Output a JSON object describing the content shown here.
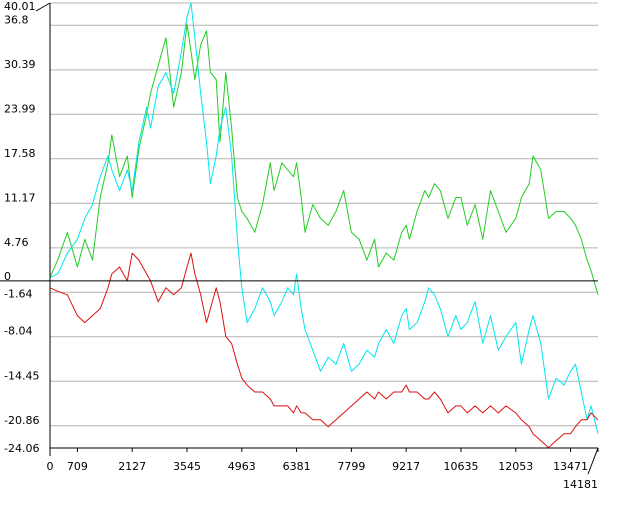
{
  "chart_data": {
    "type": "line",
    "title": "",
    "xlabel": "",
    "ylabel": "",
    "xlim": [
      0,
      14181
    ],
    "ylim": [
      -24.06,
      40.01
    ],
    "grid": true,
    "legend": "none",
    "y_ticks": [
      40.01,
      36.8,
      30.39,
      23.99,
      17.58,
      11.17,
      4.76,
      0,
      -1.64,
      -8.04,
      -14.45,
      -20.86,
      -24.06
    ],
    "y_tick_labels": [
      "40.01",
      "36.8",
      "30.39",
      "23.99",
      "17.58",
      "11.17",
      "4.76",
      "0",
      "-1.64",
      "-8.04",
      "-14.45",
      "-20.86",
      "-24.06"
    ],
    "x_ticks": [
      0,
      709,
      2127,
      3545,
      4963,
      6381,
      7799,
      9217,
      10635,
      12053,
      13471,
      14181
    ],
    "x_tick_labels": [
      "0",
      "709",
      "2127",
      "3545",
      "4963",
      "6381",
      "7799",
      "9217",
      "10635",
      "12053",
      "13471",
      "14181"
    ],
    "reference_line": 0,
    "series": [
      {
        "color": "#22cc22",
        "x": [
          0,
          200,
          450,
          709,
          900,
          1100,
          1300,
          1500,
          1600,
          1800,
          2000,
          2127,
          2300,
          2500,
          2600,
          2800,
          3000,
          3200,
          3400,
          3545,
          3650,
          3750,
          3900,
          4050,
          4150,
          4300,
          4400,
          4550,
          4700,
          4850,
          4963,
          5100,
          5300,
          5500,
          5700,
          5800,
          6000,
          6150,
          6300,
          6381,
          6500,
          6600,
          6800,
          7000,
          7200,
          7400,
          7600,
          7799,
          8000,
          8200,
          8400,
          8500,
          8700,
          8900,
          9100,
          9217,
          9300,
          9500,
          9700,
          9800,
          9950,
          10100,
          10300,
          10500,
          10635,
          10800,
          11000,
          11200,
          11400,
          11600,
          11800,
          12053,
          12200,
          12400,
          12500,
          12700,
          12900,
          13100,
          13300,
          13471,
          13600,
          13750,
          13900,
          14000,
          14181
        ],
        "values": [
          0.5,
          3,
          7,
          2,
          6,
          3,
          12,
          17,
          21,
          15,
          18,
          12,
          19,
          24,
          27,
          31,
          35,
          25,
          30,
          37,
          33,
          29,
          34,
          36,
          30,
          29,
          20,
          30,
          22,
          12,
          10,
          9,
          7,
          11,
          17,
          13,
          17,
          16,
          15,
          17,
          12,
          7,
          11,
          9,
          8,
          10,
          13,
          7,
          6,
          3,
          6,
          2,
          4,
          3,
          7,
          8,
          6,
          10,
          13,
          12,
          14,
          13,
          9,
          12,
          12,
          8,
          11,
          6,
          13,
          10,
          7,
          9,
          12,
          14,
          18,
          16,
          9,
          10,
          10,
          9,
          8,
          6,
          3,
          1.5,
          -2
        ]
      },
      {
        "color": "#00e5ee",
        "x": [
          0,
          200,
          450,
          709,
          900,
          1100,
          1300,
          1500,
          1600,
          1800,
          2000,
          2127,
          2300,
          2500,
          2600,
          2800,
          3000,
          3200,
          3400,
          3545,
          3650,
          3750,
          3900,
          4050,
          4150,
          4300,
          4400,
          4550,
          4700,
          4850,
          4963,
          5100,
          5300,
          5500,
          5700,
          5800,
          6000,
          6150,
          6300,
          6381,
          6500,
          6600,
          6800,
          7000,
          7200,
          7400,
          7600,
          7799,
          8000,
          8200,
          8400,
          8500,
          8700,
          8900,
          9100,
          9217,
          9300,
          9500,
          9700,
          9800,
          9950,
          10100,
          10300,
          10500,
          10635,
          10800,
          11000,
          11200,
          11400,
          11600,
          11800,
          12053,
          12200,
          12400,
          12500,
          12700,
          12900,
          13100,
          13300,
          13471,
          13600,
          13750,
          13900,
          14000,
          14181
        ],
        "values": [
          0.5,
          1,
          4,
          6,
          9,
          11,
          15,
          18,
          16,
          13,
          16,
          13,
          20,
          25,
          22,
          28,
          30,
          27,
          33,
          38,
          40,
          35,
          27,
          20,
          14,
          18,
          22,
          25,
          18,
          6,
          -1,
          -6,
          -4,
          -1,
          -3,
          -5,
          -3,
          -1,
          -2,
          1,
          -4,
          -7,
          -10,
          -13,
          -11,
          -12,
          -9,
          -13,
          -12,
          -10,
          -11,
          -9,
          -7,
          -9,
          -5,
          -4,
          -7,
          -6,
          -3,
          -1,
          -2,
          -4,
          -8,
          -5,
          -7,
          -6,
          -3,
          -9,
          -5,
          -10,
          -8,
          -6,
          -12,
          -7,
          -5,
          -9,
          -17,
          -14,
          -15,
          -13,
          -12,
          -16,
          -20,
          -18,
          -22
        ]
      },
      {
        "color": "#dd1111",
        "x": [
          0,
          200,
          450,
          709,
          900,
          1100,
          1300,
          1500,
          1600,
          1800,
          2000,
          2127,
          2300,
          2500,
          2600,
          2800,
          3000,
          3200,
          3400,
          3545,
          3650,
          3750,
          3900,
          4050,
          4150,
          4300,
          4400,
          4550,
          4700,
          4850,
          4963,
          5100,
          5300,
          5500,
          5700,
          5800,
          6000,
          6150,
          6300,
          6381,
          6500,
          6600,
          6800,
          7000,
          7200,
          7400,
          7600,
          7799,
          8000,
          8200,
          8400,
          8500,
          8700,
          8900,
          9100,
          9217,
          9300,
          9500,
          9700,
          9800,
          9950,
          10100,
          10300,
          10500,
          10635,
          10800,
          11000,
          11200,
          11400,
          11600,
          11800,
          12053,
          12200,
          12400,
          12500,
          12700,
          12900,
          13100,
          13300,
          13471,
          13600,
          13750,
          13900,
          14000,
          14181
        ],
        "values": [
          -1,
          -1.5,
          -2,
          -5,
          -6,
          -5,
          -4,
          -1,
          1,
          2,
          0,
          4,
          3,
          1,
          0,
          -3,
          -1,
          -2,
          -1,
          2,
          4,
          1,
          -2,
          -6,
          -4,
          -1,
          -3,
          -8,
          -9,
          -12,
          -14,
          -15,
          -16,
          -16,
          -17,
          -18,
          -18,
          -18,
          -19,
          -18,
          -19,
          -19,
          -20,
          -20,
          -21,
          -20,
          -19,
          -18,
          -17,
          -16,
          -17,
          -16,
          -17,
          -16,
          -16,
          -15,
          -16,
          -16,
          -17,
          -17,
          -16,
          -17,
          -19,
          -18,
          -18,
          -19,
          -18,
          -19,
          -18,
          -19,
          -18,
          -19,
          -20,
          -21,
          -22,
          -23,
          -24,
          -23,
          -22,
          -22,
          -21,
          -20,
          -20,
          -19,
          -20
        ]
      }
    ]
  }
}
